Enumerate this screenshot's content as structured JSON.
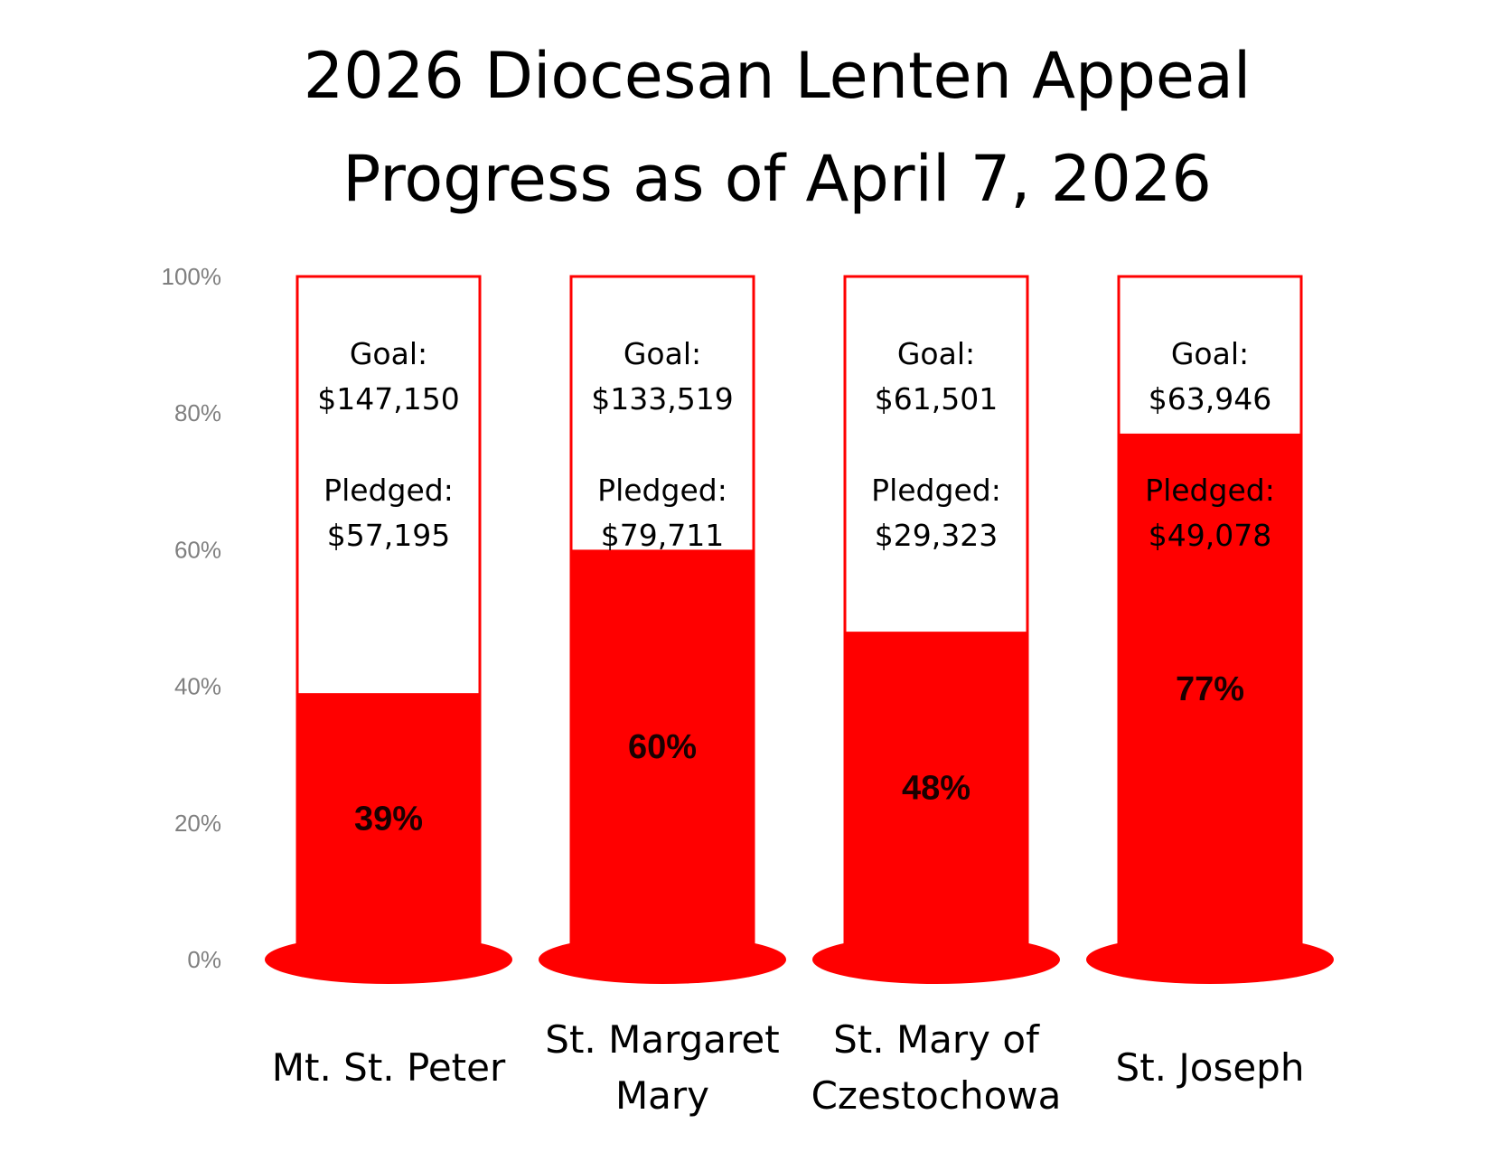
{
  "chart_data": {
    "type": "bar",
    "title": [
      "2026 Diocesan Lenten Appeal",
      "Progress as of April 7, 2026"
    ],
    "ylim": [
      0,
      100
    ],
    "yticks": [
      0,
      20,
      40,
      60,
      80,
      100
    ],
    "ytick_labels": [
      "0%",
      "20%",
      "40%",
      "60%",
      "80%",
      "100%"
    ],
    "grid": false,
    "legend": "none",
    "fill_color": "#ff0000",
    "outline_color": "#ff0000",
    "bars": [
      {
        "category": [
          "Mt. St. Peter"
        ],
        "goal_label": "Goal:",
        "goal": "$147,150",
        "pledged_label": "Pledged:",
        "pledged": "$57,195",
        "value": 39,
        "value_label": "39%"
      },
      {
        "category": [
          "St. Margaret",
          "Mary"
        ],
        "goal_label": "Goal:",
        "goal": "$133,519",
        "pledged_label": "Pledged:",
        "pledged": "$79,711",
        "value": 60,
        "value_label": "60%"
      },
      {
        "category": [
          "St. Mary of",
          "Czestochowa"
        ],
        "goal_label": "Goal:",
        "goal": "$61,501",
        "pledged_label": "Pledged:",
        "pledged": "$29,323",
        "value": 48,
        "value_label": "48%"
      },
      {
        "category": [
          "St. Joseph"
        ],
        "goal_label": "Goal:",
        "goal": "$63,946",
        "pledged_label": "Pledged:",
        "pledged": "$49,078",
        "value": 77,
        "value_label": "77%"
      }
    ]
  }
}
